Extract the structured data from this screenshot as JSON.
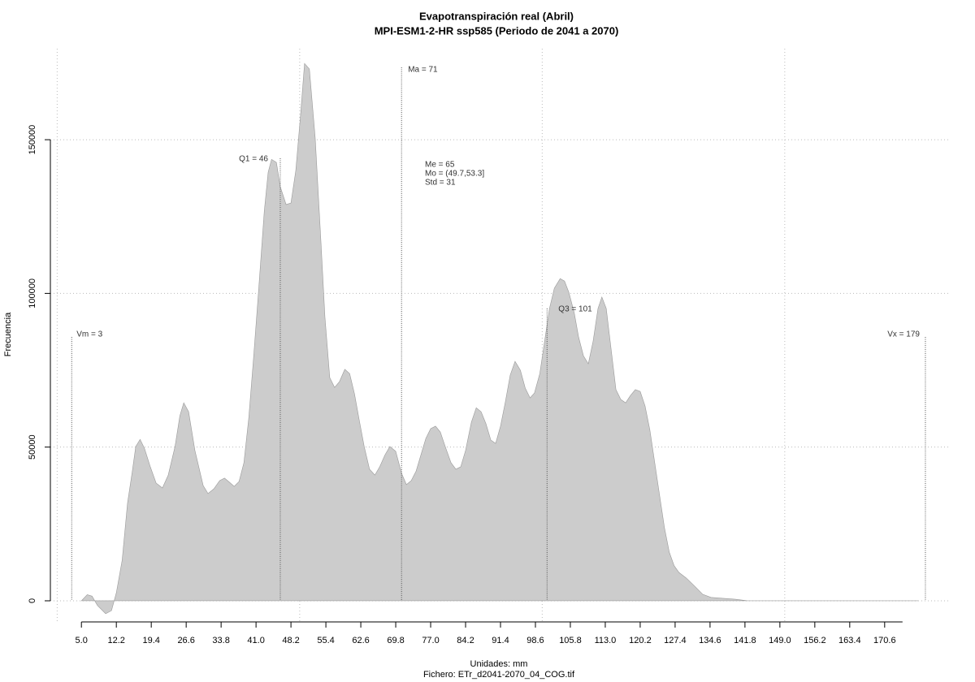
{
  "chart_data": {
    "type": "area",
    "title": "Evapotranspiración real (Abril)",
    "subtitle": "MPI-ESM1-2-HR ssp585 (Periodo de 2041 a 2070)",
    "xlabel": "Unidades: mm",
    "caption": "Fichero: ETr_d2041-2070_04_COG.tif",
    "ylabel": "Frecuencia",
    "color": "#cccccc",
    "x": [
      5,
      6.2,
      7.2,
      8.3,
      10,
      11.2,
      12.2,
      13.4,
      14.5,
      15.5,
      16.2,
      17.1,
      18,
      19.2,
      20.4,
      21.7,
      22.9,
      24.3,
      25.3,
      26.1,
      27.1,
      28.4,
      30.1,
      31.1,
      32.3,
      33.5,
      34.5,
      35.5,
      36.5,
      37.5,
      38.5,
      39.5,
      40.5,
      41.5,
      42.7,
      43.5,
      44.2,
      45.2,
      46,
      47.2,
      48.2,
      49.2,
      50.2,
      51,
      52,
      53.2,
      54.4,
      55.2,
      56.2,
      57.2,
      58.2,
      59.3,
      60.3,
      61.3,
      62.3,
      63.3,
      64.4,
      65.5,
      66.5,
      67.6,
      68.6,
      69.8,
      71,
      72,
      73,
      74,
      75,
      76,
      77,
      78,
      79,
      80,
      81.2,
      82.2,
      83.2,
      84.2,
      85.4,
      86.4,
      87.4,
      88.4,
      89.4,
      90.4,
      91.4,
      92.4,
      93.4,
      94.4,
      95.5,
      96.5,
      97.5,
      98.4,
      99.5,
      100.5,
      101.5,
      102.5,
      103.7,
      104.6,
      105.5,
      106.6,
      107.5,
      108.5,
      109.5,
      110.5,
      111.5,
      112.3,
      113.2,
      114.2,
      115.2,
      116.2,
      117.2,
      118.2,
      119.2,
      120.2,
      121.2,
      122.2,
      123.2,
      124.2,
      125.2,
      126.2,
      127.2,
      128.2,
      129.7,
      131.4,
      133.1,
      134.8,
      137.3,
      139.8,
      142.3,
      155.7,
      177.5
    ],
    "values": [
      0,
      2000,
      1500,
      -1500,
      -4200,
      -3200,
      2600,
      13200,
      31700,
      42200,
      50200,
      52500,
      49600,
      43600,
      38300,
      36700,
      40900,
      50200,
      60200,
      64400,
      61500,
      48900,
      37500,
      34900,
      36400,
      39100,
      39900,
      38600,
      37200,
      38800,
      44900,
      59400,
      79200,
      100300,
      126700,
      139400,
      143600,
      142600,
      134700,
      128900,
      129400,
      140000,
      158400,
      174800,
      173000,
      150500,
      116200,
      92400,
      72600,
      69400,
      71300,
      75300,
      73900,
      67300,
      58600,
      50200,
      42800,
      40900,
      43600,
      47500,
      50200,
      48600,
      41500,
      37800,
      39100,
      42200,
      47500,
      52800,
      56000,
      56800,
      54900,
      50200,
      44900,
      42800,
      43600,
      48900,
      58100,
      62800,
      61500,
      57600,
      52300,
      51200,
      56800,
      64700,
      73400,
      77900,
      75000,
      69200,
      66000,
      67600,
      73900,
      84500,
      95100,
      101700,
      104800,
      104000,
      100300,
      93700,
      85800,
      79700,
      77100,
      84500,
      95100,
      98800,
      95100,
      81900,
      68700,
      65500,
      64400,
      66800,
      68700,
      68100,
      63400,
      55500,
      44900,
      34300,
      23800,
      15800,
      11400,
      9200,
      7400,
      4800,
      2100,
      1100,
      800,
      500,
      0,
      0,
      0
    ],
    "xlim": [
      -1.4,
      184.2
    ],
    "ylim": [
      -7400,
      179600
    ],
    "xticks": [
      {
        "value": 5,
        "label": "5.0"
      },
      12.2,
      19.4,
      26.6,
      33.8,
      {
        "value": 41,
        "label": "41.0"
      },
      48.2,
      55.4,
      62.6,
      69.8,
      {
        "value": 77,
        "label": "77.0"
      },
      84.2,
      91.4,
      98.6,
      105.8,
      {
        "value": 113,
        "label": "113.0"
      },
      120.2,
      127.4,
      134.6,
      141.8,
      {
        "value": 149,
        "label": "149.0"
      },
      156.2,
      163.4,
      170.6
    ],
    "yticks": [
      0,
      50000,
      100000,
      150000
    ],
    "xgrid": [
      0,
      50,
      100,
      150
    ],
    "grid": true,
    "markers": [
      {
        "label": "Vm = 3",
        "x": 3
      },
      {
        "label": "Q1 = 46",
        "x": 46
      },
      {
        "label": "Ma = 71",
        "x": 71
      },
      {
        "label": "Q3 = 101",
        "x": 101
      },
      {
        "label": "Vx = 179",
        "x": 179
      }
    ],
    "stats": [
      "Me = 65",
      "Mo = (49.7,53.3]",
      "Std = 31"
    ]
  }
}
